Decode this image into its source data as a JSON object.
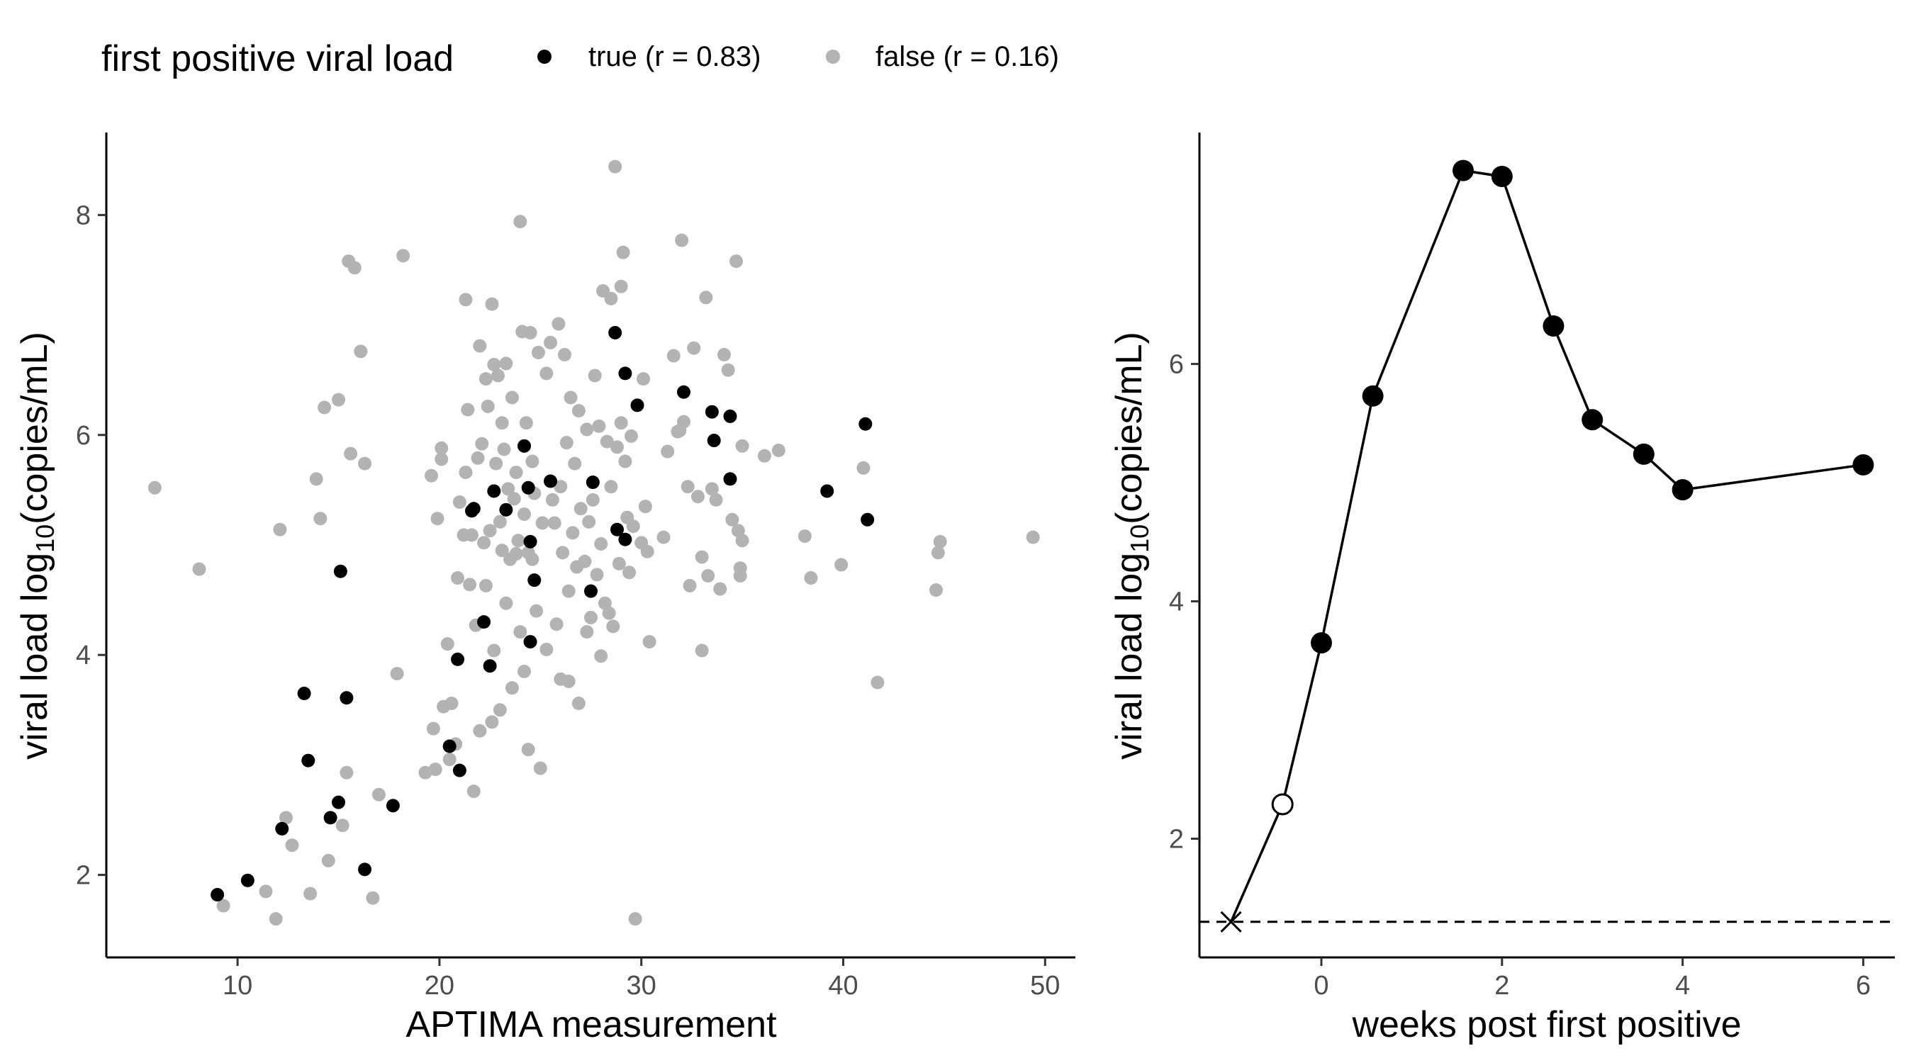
{
  "legend": {
    "title": "first positive viral load",
    "entries": [
      {
        "label": "true (r = 0.83)",
        "color": "#000000"
      },
      {
        "label": "false (r = 0.16)",
        "color": "#b3b3b3"
      }
    ]
  },
  "chart_data": [
    {
      "type": "scatter",
      "xlabel": "APTIMA measurement",
      "ylabel_main": "viral load log",
      "ylabel_sub": "10",
      "ylabel_tail": "(copies/mL)",
      "xlim": [
        3.5,
        51.5
      ],
      "ylim": [
        1.25,
        8.75
      ],
      "xticks": [
        10,
        20,
        30,
        40,
        50
      ],
      "yticks": [
        2,
        4,
        6,
        8
      ],
      "grid": false,
      "legend_position": "top",
      "series": [
        {
          "name": "true (r = 0.83)",
          "color": "#000000",
          "points": [
            [
              9.0,
              1.82
            ],
            [
              10.5,
              1.95
            ],
            [
              12.2,
              2.42
            ],
            [
              13.3,
              3.65
            ],
            [
              13.5,
              3.04
            ],
            [
              14.6,
              2.52
            ],
            [
              15.0,
              2.66
            ],
            [
              15.1,
              4.76
            ],
            [
              15.4,
              3.61
            ],
            [
              16.3,
              2.05
            ],
            [
              17.7,
              2.63
            ],
            [
              20.5,
              3.17
            ],
            [
              20.9,
              3.96
            ],
            [
              21.0,
              2.95
            ],
            [
              21.6,
              5.31
            ],
            [
              21.7,
              5.33
            ],
            [
              22.2,
              4.3
            ],
            [
              22.5,
              3.9
            ],
            [
              22.7,
              5.49
            ],
            [
              23.3,
              5.32
            ],
            [
              24.2,
              5.9
            ],
            [
              24.4,
              5.52
            ],
            [
              24.5,
              4.12
            ],
            [
              24.5,
              5.03
            ],
            [
              24.7,
              4.68
            ],
            [
              25.5,
              5.58
            ],
            [
              27.5,
              4.58
            ],
            [
              27.6,
              5.57
            ],
            [
              28.7,
              6.93
            ],
            [
              28.8,
              5.14
            ],
            [
              29.2,
              6.56
            ],
            [
              29.2,
              5.05
            ],
            [
              29.8,
              6.27
            ],
            [
              32.1,
              6.39
            ],
            [
              33.5,
              6.21
            ],
            [
              33.6,
              5.95
            ],
            [
              34.4,
              6.17
            ],
            [
              34.4,
              5.6
            ],
            [
              39.2,
              5.49
            ],
            [
              41.1,
              6.1
            ],
            [
              41.2,
              5.23
            ]
          ]
        },
        {
          "name": "false (r = 0.16)",
          "color": "#b3b3b3",
          "points": [
            [
              5.9,
              5.52
            ],
            [
              8.1,
              4.78
            ],
            [
              9.3,
              1.72
            ],
            [
              11.4,
              1.85
            ],
            [
              11.9,
              1.6
            ],
            [
              12.1,
              5.14
            ],
            [
              12.4,
              2.52
            ],
            [
              12.7,
              2.27
            ],
            [
              13.6,
              1.83
            ],
            [
              13.9,
              5.6
            ],
            [
              14.1,
              5.24
            ],
            [
              14.3,
              6.25
            ],
            [
              14.5,
              2.13
            ],
            [
              15.0,
              6.32
            ],
            [
              15.2,
              2.45
            ],
            [
              15.4,
              2.93
            ],
            [
              15.5,
              7.58
            ],
            [
              15.6,
              5.83
            ],
            [
              15.8,
              7.52
            ],
            [
              16.1,
              6.76
            ],
            [
              16.3,
              5.74
            ],
            [
              16.7,
              1.79
            ],
            [
              17.0,
              2.73
            ],
            [
              17.9,
              3.83
            ],
            [
              18.2,
              7.63
            ],
            [
              19.3,
              2.93
            ],
            [
              19.6,
              5.63
            ],
            [
              19.7,
              3.33
            ],
            [
              19.8,
              2.96
            ],
            [
              19.9,
              5.24
            ],
            [
              20.1,
              5.88
            ],
            [
              20.1,
              5.78
            ],
            [
              20.2,
              3.53
            ],
            [
              20.4,
              4.1
            ],
            [
              20.5,
              3.05
            ],
            [
              20.6,
              3.56
            ],
            [
              20.8,
              3.19
            ],
            [
              20.9,
              4.7
            ],
            [
              21.0,
              5.39
            ],
            [
              21.2,
              5.09
            ],
            [
              21.3,
              7.23
            ],
            [
              21.3,
              5.66
            ],
            [
              21.4,
              6.23
            ],
            [
              21.5,
              4.64
            ],
            [
              21.6,
              5.09
            ],
            [
              21.7,
              2.76
            ],
            [
              21.8,
              4.27
            ],
            [
              21.9,
              5.79
            ],
            [
              22.0,
              6.81
            ],
            [
              22.0,
              3.31
            ],
            [
              22.1,
              5.92
            ],
            [
              22.2,
              5.02
            ],
            [
              22.3,
              6.51
            ],
            [
              22.3,
              4.63
            ],
            [
              22.4,
              6.26
            ],
            [
              22.5,
              5.13
            ],
            [
              22.6,
              7.19
            ],
            [
              22.6,
              3.39
            ],
            [
              22.7,
              6.64
            ],
            [
              22.7,
              4.04
            ],
            [
              22.8,
              5.74
            ],
            [
              22.9,
              6.54
            ],
            [
              23.0,
              5.21
            ],
            [
              23.0,
              3.5
            ],
            [
              23.1,
              6.11
            ],
            [
              23.1,
              4.95
            ],
            [
              23.2,
              5.87
            ],
            [
              23.3,
              6.65
            ],
            [
              23.3,
              4.47
            ],
            [
              23.4,
              5.51
            ],
            [
              23.5,
              4.87
            ],
            [
              23.6,
              6.34
            ],
            [
              23.6,
              3.7
            ],
            [
              23.7,
              5.42
            ],
            [
              23.8,
              5.66
            ],
            [
              23.8,
              4.92
            ],
            [
              23.9,
              5.04
            ],
            [
              24.0,
              7.94
            ],
            [
              24.0,
              4.21
            ],
            [
              24.1,
              6.94
            ],
            [
              24.2,
              5.28
            ],
            [
              24.2,
              3.85
            ],
            [
              24.3,
              6.11
            ],
            [
              24.4,
              4.93
            ],
            [
              24.4,
              3.14
            ],
            [
              24.5,
              6.93
            ],
            [
              24.6,
              5.76
            ],
            [
              24.6,
              4.87
            ],
            [
              24.7,
              5.47
            ],
            [
              24.8,
              4.4
            ],
            [
              24.9,
              6.75
            ],
            [
              25.0,
              2.97
            ],
            [
              25.1,
              5.2
            ],
            [
              25.3,
              6.56
            ],
            [
              25.3,
              4.05
            ],
            [
              25.5,
              6.84
            ],
            [
              25.6,
              5.41
            ],
            [
              25.7,
              5.2
            ],
            [
              25.8,
              4.28
            ],
            [
              25.9,
              7.01
            ],
            [
              26.0,
              5.53
            ],
            [
              26.0,
              3.78
            ],
            [
              26.1,
              4.93
            ],
            [
              26.2,
              6.73
            ],
            [
              26.3,
              5.93
            ],
            [
              26.4,
              4.58
            ],
            [
              26.4,
              3.76
            ],
            [
              26.5,
              6.34
            ],
            [
              26.6,
              5.11
            ],
            [
              26.7,
              5.74
            ],
            [
              26.8,
              4.8
            ],
            [
              26.9,
              3.56
            ],
            [
              26.9,
              6.22
            ],
            [
              27.0,
              5.33
            ],
            [
              27.2,
              4.85
            ],
            [
              27.3,
              6.05
            ],
            [
              27.3,
              4.21
            ],
            [
              27.4,
              5.21
            ],
            [
              27.5,
              4.34
            ],
            [
              27.6,
              5.41
            ],
            [
              27.7,
              6.54
            ],
            [
              27.8,
              4.73
            ],
            [
              27.9,
              6.08
            ],
            [
              28.0,
              5.01
            ],
            [
              28.0,
              3.99
            ],
            [
              28.1,
              7.31
            ],
            [
              28.2,
              4.47
            ],
            [
              28.3,
              5.94
            ],
            [
              28.4,
              4.38
            ],
            [
              28.5,
              7.24
            ],
            [
              28.5,
              5.53
            ],
            [
              28.6,
              4.26
            ],
            [
              28.7,
              8.44
            ],
            [
              28.8,
              5.89
            ],
            [
              28.9,
              4.83
            ],
            [
              29.0,
              7.35
            ],
            [
              29.0,
              6.11
            ],
            [
              29.1,
              7.66
            ],
            [
              29.2,
              5.76
            ],
            [
              29.3,
              5.25
            ],
            [
              29.4,
              4.75
            ],
            [
              29.5,
              5.99
            ],
            [
              29.6,
              5.17
            ],
            [
              29.7,
              1.6
            ],
            [
              30.0,
              5.02
            ],
            [
              30.1,
              6.51
            ],
            [
              30.2,
              5.35
            ],
            [
              30.3,
              4.94
            ],
            [
              30.4,
              4.12
            ],
            [
              31.1,
              5.07
            ],
            [
              31.3,
              5.85
            ],
            [
              31.6,
              6.72
            ],
            [
              31.8,
              6.03
            ],
            [
              31.9,
              6.04
            ],
            [
              32.0,
              7.77
            ],
            [
              32.1,
              6.12
            ],
            [
              32.3,
              5.53
            ],
            [
              32.4,
              4.63
            ],
            [
              32.6,
              6.79
            ],
            [
              32.8,
              5.44
            ],
            [
              33.0,
              4.04
            ],
            [
              33.0,
              4.89
            ],
            [
              33.2,
              7.25
            ],
            [
              33.3,
              4.72
            ],
            [
              33.5,
              5.51
            ],
            [
              33.7,
              5.41
            ],
            [
              33.9,
              4.6
            ],
            [
              34.1,
              6.73
            ],
            [
              34.3,
              6.59
            ],
            [
              34.5,
              5.23
            ],
            [
              34.7,
              7.58
            ],
            [
              34.8,
              5.13
            ],
            [
              34.9,
              4.79
            ],
            [
              34.9,
              4.72
            ],
            [
              35.0,
              5.04
            ],
            [
              35.0,
              5.9
            ],
            [
              36.1,
              5.81
            ],
            [
              36.8,
              5.86
            ],
            [
              38.1,
              5.08
            ],
            [
              38.4,
              4.7
            ],
            [
              39.9,
              4.82
            ],
            [
              41.0,
              5.7
            ],
            [
              41.7,
              3.75
            ],
            [
              44.6,
              4.59
            ],
            [
              44.7,
              4.93
            ],
            [
              44.8,
              5.03
            ],
            [
              49.4,
              5.07
            ]
          ]
        }
      ]
    },
    {
      "type": "line",
      "xlabel": "weeks post first positive",
      "ylabel_main": "viral load log",
      "ylabel_sub": "10",
      "ylabel_tail": "(copies/mL)",
      "xlim": [
        -1.35,
        6.35
      ],
      "ylim": [
        1.0,
        7.95
      ],
      "xticks": [
        0,
        2,
        4,
        6
      ],
      "yticks": [
        2,
        4,
        6
      ],
      "grid": false,
      "reference_line": {
        "y": 1.3,
        "style": "dashed"
      },
      "points": [
        {
          "x": -1.0,
          "y": 1.3,
          "marker": "cross"
        },
        {
          "x": -0.43,
          "y": 2.29,
          "marker": "open-circle"
        },
        {
          "x": 0.0,
          "y": 3.65,
          "marker": "filled-circle"
        },
        {
          "x": 0.57,
          "y": 5.73,
          "marker": "filled-circle"
        },
        {
          "x": 1.57,
          "y": 7.63,
          "marker": "filled-circle"
        },
        {
          "x": 2.0,
          "y": 7.58,
          "marker": "filled-circle"
        },
        {
          "x": 2.57,
          "y": 6.32,
          "marker": "filled-circle"
        },
        {
          "x": 3.0,
          "y": 5.53,
          "marker": "filled-circle"
        },
        {
          "x": 3.57,
          "y": 5.24,
          "marker": "filled-circle"
        },
        {
          "x": 4.0,
          "y": 4.94,
          "marker": "filled-circle"
        },
        {
          "x": 6.0,
          "y": 5.15,
          "marker": "filled-circle"
        }
      ]
    }
  ]
}
